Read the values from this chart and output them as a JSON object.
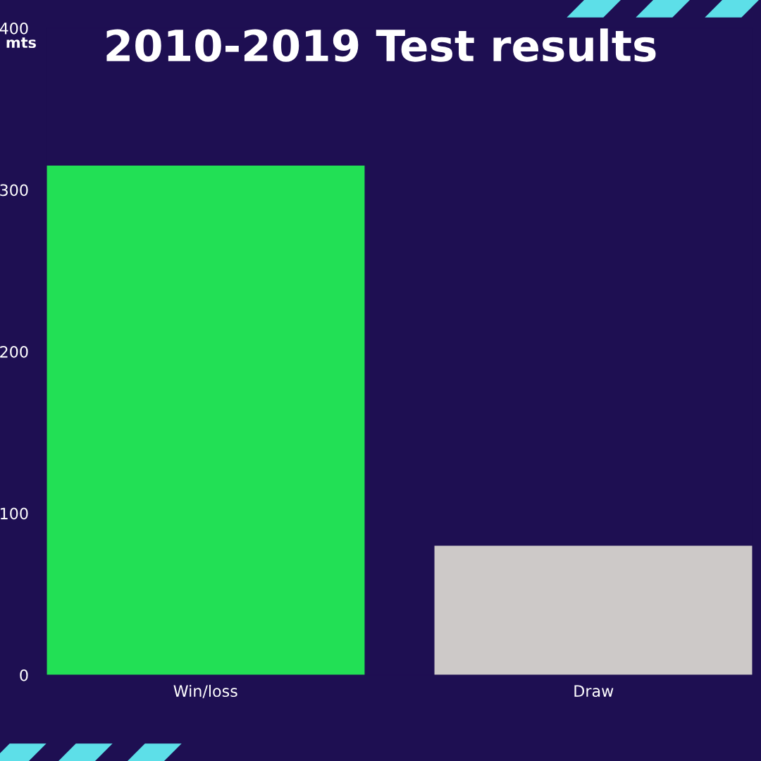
{
  "chart_data": {
    "type": "bar",
    "title": "2010-2019 Test results",
    "ylabel": "mts",
    "categories": [
      "Win/loss",
      "Draw"
    ],
    "values": [
      315,
      80
    ],
    "colors": [
      "#22e055",
      "#cdc9c8"
    ],
    "ylim": [
      0,
      400
    ],
    "yticks": [
      0,
      100,
      200,
      300,
      400
    ],
    "grid": false,
    "legend": false
  }
}
